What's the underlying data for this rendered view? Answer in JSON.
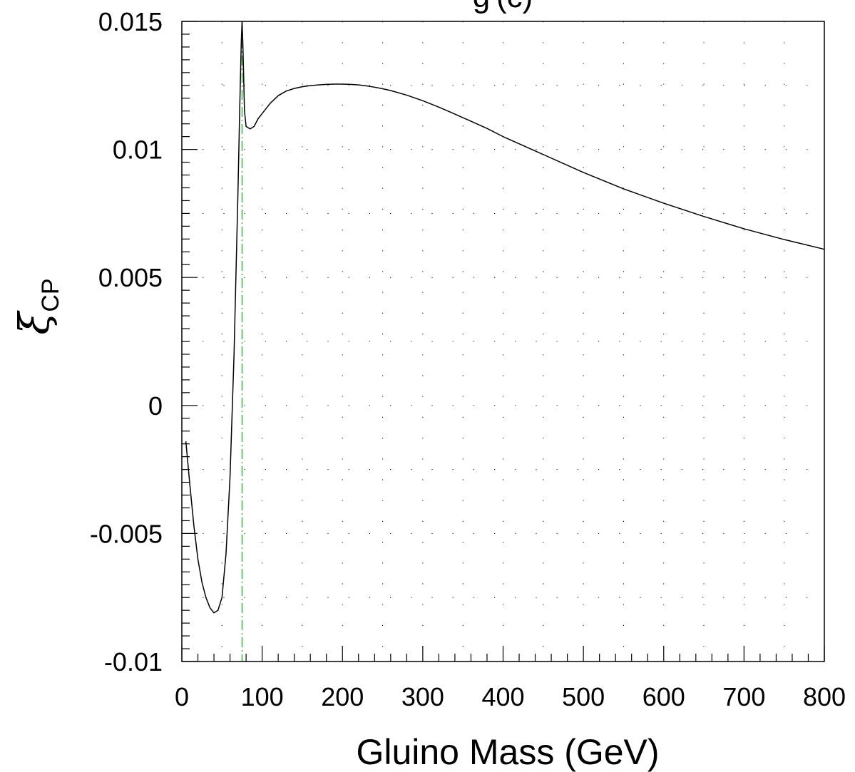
{
  "chart_data": {
    "type": "line",
    "title": "g (c)",
    "xlabel": "Gluino Mass (GeV)",
    "ylabel_main": "ξ",
    "ylabel_sub": "CP",
    "xlim": [
      0,
      800
    ],
    "ylim": [
      -0.01,
      0.015
    ],
    "x_ticks": [
      0,
      100,
      200,
      300,
      400,
      500,
      600,
      700,
      800
    ],
    "x_tick_labels": [
      "0",
      "100",
      "200",
      "300",
      "400",
      "500",
      "600",
      "700",
      "800"
    ],
    "y_ticks": [
      -0.01,
      -0.005,
      0,
      0.005,
      0.01,
      0.015
    ],
    "y_tick_labels": [
      "-0.01",
      "-0.005",
      "0",
      "0.005",
      "0.01",
      "0.015"
    ],
    "grid": "dotted",
    "series": [
      {
        "color": "#000000",
        "x": [
          5,
          10,
          15,
          20,
          25,
          30,
          35,
          40,
          45,
          50,
          55,
          60,
          65,
          70,
          72,
          74,
          75,
          76,
          77,
          78,
          80,
          85,
          90,
          95,
          100,
          110,
          120,
          130,
          140,
          150,
          160,
          170,
          180,
          190,
          200,
          210,
          220,
          230,
          240,
          250,
          260,
          280,
          300,
          320,
          340,
          360,
          380,
          400,
          450,
          500,
          550,
          600,
          650,
          700,
          750,
          800
        ],
        "y": [
          -0.0014,
          -0.0031,
          -0.0047,
          -0.006,
          -0.0069,
          -0.0075,
          -0.0079,
          -0.0081,
          -0.008,
          -0.0075,
          -0.0058,
          -0.0028,
          0.002,
          0.0085,
          0.0115,
          0.0142,
          0.015,
          0.0141,
          0.0128,
          0.0115,
          0.0109,
          0.0108,
          0.0109,
          0.0112,
          0.0114,
          0.0118,
          0.0121,
          0.01228,
          0.01238,
          0.01245,
          0.01249,
          0.01252,
          0.01254,
          0.01255,
          0.01255,
          0.01254,
          0.01252,
          0.01248,
          0.01243,
          0.01237,
          0.0123,
          0.01212,
          0.0119,
          0.01165,
          0.01138,
          0.0111,
          0.01082,
          0.0105,
          0.0098,
          0.0091,
          0.00846,
          0.0079,
          0.00738,
          0.0069,
          0.00648,
          0.0061
        ]
      }
    ],
    "reference_lines": [
      {
        "orientation": "vertical",
        "x": 75,
        "color": "#00cc00",
        "style": "dash-dot"
      }
    ]
  }
}
